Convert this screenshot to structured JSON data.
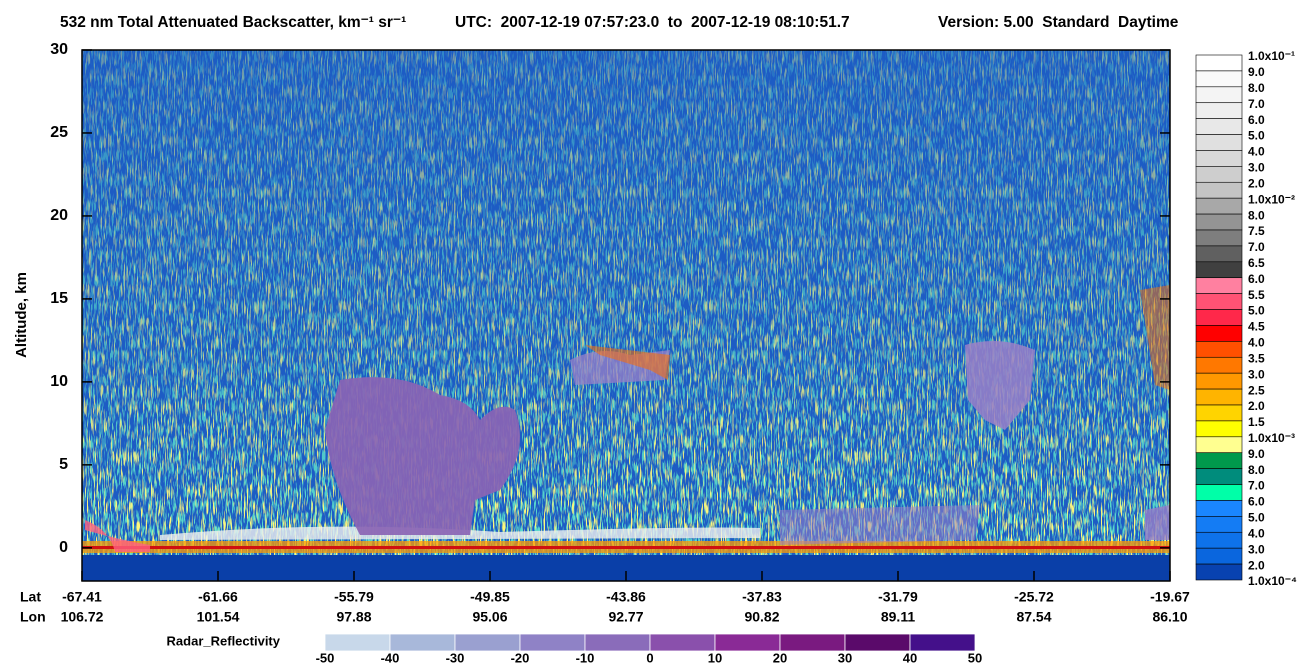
{
  "chart_data": {
    "type": "heatmap",
    "title": "532 nm Total Attenuated Backscatter, km⁻¹ sr⁻¹",
    "subtitle": "UTC:  2007-12-19 07:57:23.0  to  2007-12-19 08:10:51.7",
    "version": "Version: 5.00  Standard  Daytime",
    "ylabel": "Altitude, km",
    "ylim": [
      -2,
      30
    ],
    "yticks": [
      0,
      5,
      10,
      15,
      20,
      25,
      30
    ],
    "x_rows": [
      {
        "name": "Lat",
        "labels": [
          "-67.41",
          "-61.66",
          "-55.79",
          "-49.85",
          "-43.86",
          "-37.83",
          "-31.79",
          "-25.72",
          "-19.67"
        ]
      },
      {
        "name": "Lon",
        "labels": [
          "106.72",
          "101.54",
          "97.88",
          "95.06",
          "92.77",
          "90.82",
          "89.11",
          "87.54",
          "86.10"
        ]
      }
    ],
    "colorbar": {
      "labels": [
        "1.0x10⁻¹",
        "9.0",
        "8.0",
        "7.0",
        "6.0",
        "5.0",
        "4.0",
        "3.0",
        "2.0",
        "1.0x10⁻²",
        "8.0",
        "7.5",
        "7.0",
        "6.5",
        "6.0",
        "5.5",
        "5.0",
        "4.5",
        "4.0",
        "3.5",
        "3.0",
        "2.5",
        "2.0",
        "1.5",
        "1.0x10⁻³",
        "9.0",
        "8.0",
        "7.0",
        "6.0",
        "5.0",
        "4.0",
        "3.0",
        "2.0",
        "1.0x10⁻⁴"
      ],
      "colors": [
        "#ffffff",
        "#fafafa",
        "#f4f4f4",
        "#eeeeee",
        "#e8e8e8",
        "#e0e0e0",
        "#d8d8d8",
        "#cecece",
        "#c4c4c4",
        "#a8a8a8",
        "#949494",
        "#7e7e7e",
        "#606060",
        "#404040",
        "#ff80a0",
        "#ff5274",
        "#ff284a",
        "#ff0000",
        "#ff5000",
        "#ff7800",
        "#ff9800",
        "#ffb400",
        "#ffd400",
        "#ffff00",
        "#ffff90",
        "#00994c",
        "#008c7c",
        "#00ffa8",
        "#1a86ff",
        "#147cf4",
        "#0e72ea",
        "#0a66de",
        "#0842b0",
        "#062c9c"
      ]
    },
    "radar": {
      "name": "Radar_Reflectivity",
      "ticks": [
        -50,
        -40,
        -30,
        -20,
        -10,
        0,
        10,
        20,
        30,
        40,
        50
      ],
      "colors": [
        "#c8d8ea",
        "#a8b8da",
        "#9aa0d0",
        "#8f82c6",
        "#8a6cba",
        "#8a50ac",
        "#8a2a96",
        "#7a1a80",
        "#5a0a6a",
        "#44108a"
      ]
    }
  }
}
